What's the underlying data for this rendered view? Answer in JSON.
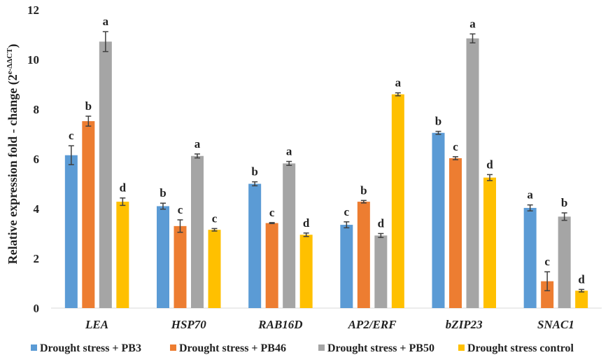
{
  "chart_data": {
    "type": "bar",
    "title": "",
    "xlabel": "",
    "ylabel": "Relative expression fold - change (2",
    "ylabel_superscript": "e-ΔΔCT",
    "ylim": [
      0,
      12
    ],
    "yticks": [
      0,
      2,
      4,
      6,
      8,
      10,
      12
    ],
    "categories": [
      "LEA",
      "HSP70",
      "RAB16D",
      "AP2/ERF",
      "bZIP23",
      "SNAC1"
    ],
    "series": [
      {
        "name": "Drought stress + PB3",
        "color": "#5b9bd5",
        "values": [
          6.15,
          4.1,
          5.0,
          3.35,
          7.05,
          4.03
        ],
        "errors": [
          0.38,
          0.12,
          0.08,
          0.12,
          0.06,
          0.12
        ],
        "letters": [
          "c",
          "b",
          "b",
          "c",
          "b",
          "a"
        ]
      },
      {
        "name": "Drought stress + PB46",
        "color": "#ed7d31",
        "values": [
          7.52,
          3.3,
          3.42,
          4.28,
          6.03,
          1.08
        ],
        "errors": [
          0.2,
          0.25,
          0.02,
          0.05,
          0.06,
          0.38
        ],
        "letters": [
          "b",
          "c",
          "c",
          "b",
          "c",
          "c"
        ]
      },
      {
        "name": "Drought stress + PB50",
        "color": "#a5a5a5",
        "values": [
          10.72,
          6.12,
          5.82,
          2.92,
          10.85,
          3.68
        ],
        "errors": [
          0.4,
          0.08,
          0.08,
          0.08,
          0.18,
          0.15
        ],
        "letters": [
          "a",
          "a",
          "a",
          "d",
          "a",
          "b"
        ]
      },
      {
        "name": "Drought stress control",
        "color": "#ffc000",
        "values": [
          4.28,
          3.15,
          2.95,
          8.6,
          5.25,
          0.7
        ],
        "errors": [
          0.15,
          0.05,
          0.07,
          0.06,
          0.12,
          0.05
        ],
        "letters": [
          "d",
          "c",
          "d",
          "a",
          "d",
          "d"
        ]
      }
    ],
    "legend": "bottom"
  }
}
